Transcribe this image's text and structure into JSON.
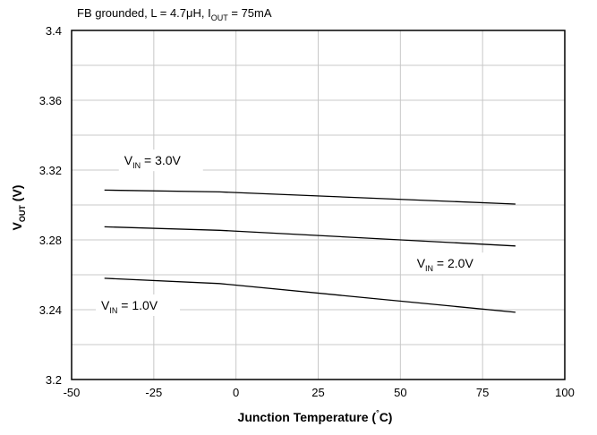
{
  "chart_data": {
    "type": "line",
    "note": {
      "pre": "FB grounded,  L = 4.7",
      "mu": "μ",
      "mid": "H,  I",
      "sub": "OUT",
      "post": " = 75mA"
    },
    "xlabel": {
      "main": "Junction Temperature (",
      "deg": "°",
      "unit": "C)"
    },
    "ylabel": {
      "main": "V",
      "sub": "OUT",
      "unit": " (V)"
    },
    "xlim": [
      -50,
      100
    ],
    "ylim": [
      3.2,
      3.4
    ],
    "x_ticks": [
      {
        "value": -50,
        "label": "-50"
      },
      {
        "value": -25,
        "label": "-25"
      },
      {
        "value": 0,
        "label": "0"
      },
      {
        "value": 25,
        "label": "25"
      },
      {
        "value": 50,
        "label": "50"
      },
      {
        "value": 75,
        "label": "75"
      },
      {
        "value": 100,
        "label": "100"
      }
    ],
    "y_ticks": [
      {
        "value": 3.2,
        "label": "3.2"
      },
      {
        "value": 3.24,
        "label": "3.24"
      },
      {
        "value": 3.28,
        "label": "3.28"
      },
      {
        "value": 3.32,
        "label": "3.32"
      },
      {
        "value": 3.36,
        "label": "3.36"
      },
      {
        "value": 3.4,
        "label": "3.4"
      }
    ],
    "grid": true,
    "series": [
      {
        "name": "VIN = 3.0V",
        "label": {
          "main": "V",
          "sub": "IN",
          "value": " = 3.0V"
        },
        "label_at": {
          "x": -34,
          "y": 3.323
        },
        "x": [
          -40,
          -5,
          85
        ],
        "values": [
          3.3085,
          3.3075,
          3.3005
        ],
        "color": "#000000"
      },
      {
        "name": "VIN = 2.0V",
        "label": {
          "main": "V",
          "sub": "IN",
          "value": " = 2.0V"
        },
        "label_at": {
          "x": 55,
          "y": 3.264
        },
        "x": [
          -40,
          -5,
          85
        ],
        "values": [
          3.2875,
          3.2855,
          3.2765
        ],
        "color": "#000000"
      },
      {
        "name": "VIN = 1.0V",
        "label": {
          "main": "V",
          "sub": "IN",
          "value": " = 1.0V"
        },
        "label_at": {
          "x": -41,
          "y": 3.24
        },
        "x": [
          -40,
          -5,
          85
        ],
        "values": [
          3.258,
          3.255,
          3.2385
        ],
        "color": "#000000"
      }
    ]
  }
}
